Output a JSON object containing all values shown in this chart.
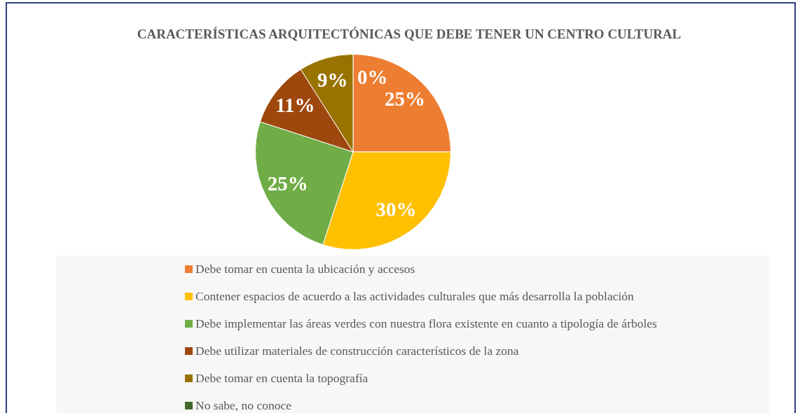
{
  "chart_data": {
    "type": "pie",
    "title": "CARACTERÍSTICAS ARQUITECTÓNICAS QUE DEBE TENER UN CENTRO CULTURAL",
    "categories": [
      "Debe tomar en cuenta la ubicación y accesos",
      "Contener espacios de acuerdo a las actividades culturales que más desarrolla la población",
      "Debe implementar las áreas verdes con nuestra flora existente en cuanto a tipología de árboles",
      "Debe utilizar materiales de construcción característicos de la zona",
      "Debe tomar en cuenta la topografía",
      "No sabe, no conoce"
    ],
    "values": [
      25,
      30,
      25,
      11,
      9,
      0
    ],
    "colors": [
      "#ed7d31",
      "#ffc000",
      "#70ad47",
      "#9e480e",
      "#997300",
      "#43682b"
    ],
    "value_labels": [
      "25%",
      "30%",
      "25%",
      "11%",
      "9%",
      "0%"
    ],
    "legend": "bottom"
  }
}
